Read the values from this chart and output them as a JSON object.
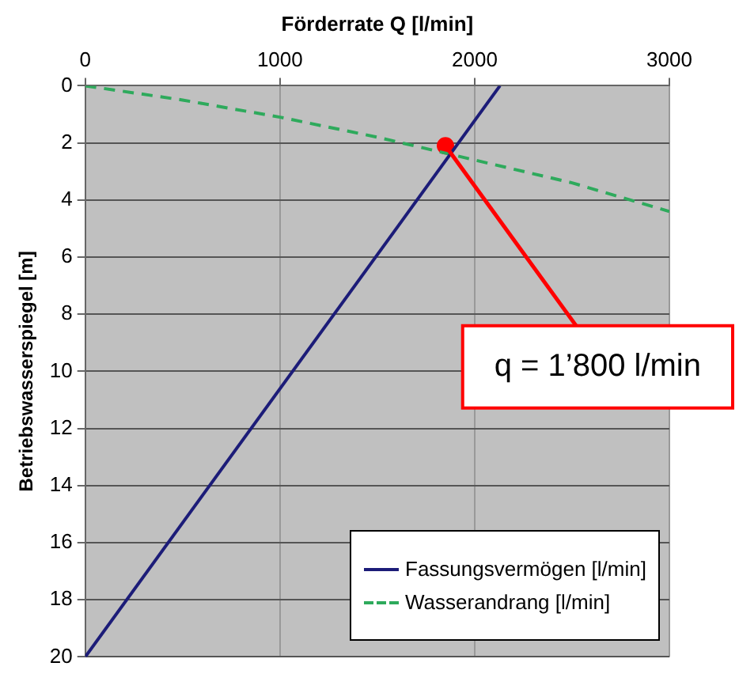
{
  "chart_data": {
    "type": "line",
    "xlabel": "Förderrate Q [l/min]",
    "ylabel": "Betriebswasserspiegel [m]",
    "xlim": [
      0,
      3000
    ],
    "xticks": [
      0,
      1000,
      2000,
      3000
    ],
    "ylim": [
      20,
      0
    ],
    "yticks": [
      0,
      2,
      4,
      6,
      8,
      10,
      12,
      14,
      16,
      18,
      20
    ],
    "grid": true,
    "legend": "bottom right",
    "series": [
      {
        "name": "Fassungsvermögen [l/min]",
        "color": "#1c1c78",
        "x": [
          0,
          2130
        ],
        "values": [
          20,
          0
        ],
        "line_style": "solid",
        "marker": "none"
      },
      {
        "name": "Wasserandrang [l/min]",
        "color": "#2eaa5c",
        "x": [
          0,
          500,
          1000,
          1500,
          2000,
          2500,
          3000
        ],
        "values": [
          0,
          0.5,
          1.1,
          1.8,
          2.6,
          3.4,
          4.4
        ],
        "line_style": "dashed",
        "marker": "none"
      },
      {
        "type": "scatter",
        "color": "#ff0000",
        "x": [
          1850
        ],
        "values": [
          2.1
        ],
        "marker": "circle"
      }
    ],
    "annotations": [
      {
        "text": "q = 1’800 l/min",
        "x": 1850,
        "y": 2.1
      }
    ]
  }
}
